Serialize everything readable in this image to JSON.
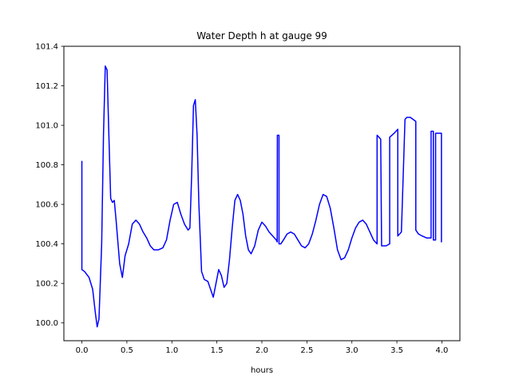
{
  "chart_data": {
    "type": "line",
    "title": "Water Depth h at gauge 99",
    "xlabel": "hours",
    "ylabel": "",
    "xlim": [
      -0.2,
      4.2
    ],
    "ylim": [
      99.91,
      101.4
    ],
    "xticks": [
      0.0,
      0.5,
      1.0,
      1.5,
      2.0,
      2.5,
      3.0,
      3.5,
      4.0
    ],
    "xtick_labels": [
      "0.0",
      "0.5",
      "1.0",
      "1.5",
      "2.0",
      "2.5",
      "3.0",
      "3.5",
      "4.0"
    ],
    "yticks": [
      100.0,
      100.2,
      100.4,
      100.6,
      100.8,
      101.0,
      101.2,
      101.4
    ],
    "ytick_labels": [
      "100.0",
      "100.2",
      "100.4",
      "100.6",
      "100.8",
      "101.0",
      "101.2",
      "101.4"
    ],
    "grid": false,
    "legend": "none",
    "series": [
      {
        "color": "#0000ff",
        "x": [
          0.0,
          0.0,
          0.03,
          0.08,
          0.12,
          0.15,
          0.17,
          0.19,
          0.22,
          0.24,
          0.26,
          0.28,
          0.3,
          0.32,
          0.34,
          0.36,
          0.38,
          0.42,
          0.45,
          0.48,
          0.52,
          0.56,
          0.6,
          0.64,
          0.68,
          0.72,
          0.76,
          0.8,
          0.85,
          0.9,
          0.94,
          0.98,
          1.02,
          1.06,
          1.1,
          1.14,
          1.18,
          1.2,
          1.22,
          1.24,
          1.26,
          1.28,
          1.3,
          1.33,
          1.36,
          1.4,
          1.43,
          1.46,
          1.49,
          1.52,
          1.55,
          1.58,
          1.61,
          1.64,
          1.67,
          1.7,
          1.73,
          1.76,
          1.79,
          1.82,
          1.85,
          1.88,
          1.92,
          1.96,
          2.0,
          2.04,
          2.08,
          2.12,
          2.16,
          2.17,
          2.172,
          2.19,
          2.19,
          2.21,
          2.24,
          2.28,
          2.32,
          2.36,
          2.4,
          2.44,
          2.48,
          2.52,
          2.56,
          2.6,
          2.64,
          2.68,
          2.72,
          2.76,
          2.8,
          2.84,
          2.88,
          2.92,
          2.96,
          3.0,
          3.04,
          3.08,
          3.12,
          3.16,
          3.2,
          3.24,
          3.28,
          3.28,
          3.32,
          3.33,
          3.38,
          3.42,
          3.42,
          3.47,
          3.51,
          3.51,
          3.55,
          3.59,
          3.61,
          3.65,
          3.68,
          3.71,
          3.71,
          3.74,
          3.78,
          3.83,
          3.88,
          3.88,
          3.905,
          3.905,
          3.93,
          3.93,
          3.995,
          3.995,
          4.0
        ],
        "y": [
          100.82,
          100.27,
          100.26,
          100.23,
          100.17,
          100.05,
          99.98,
          100.02,
          100.4,
          100.95,
          101.3,
          101.28,
          100.95,
          100.63,
          100.61,
          100.62,
          100.52,
          100.3,
          100.23,
          100.34,
          100.4,
          100.5,
          100.52,
          100.5,
          100.46,
          100.43,
          100.39,
          100.37,
          100.37,
          100.38,
          100.42,
          100.52,
          100.6,
          100.61,
          100.55,
          100.5,
          100.47,
          100.48,
          100.75,
          101.1,
          101.13,
          100.95,
          100.6,
          100.26,
          100.22,
          100.21,
          100.17,
          100.13,
          100.2,
          100.27,
          100.24,
          100.18,
          100.2,
          100.32,
          100.48,
          100.62,
          100.65,
          100.62,
          100.55,
          100.44,
          100.37,
          100.35,
          100.39,
          100.47,
          100.51,
          100.49,
          100.46,
          100.44,
          100.42,
          100.41,
          100.95,
          100.95,
          100.4,
          100.4,
          100.42,
          100.45,
          100.46,
          100.45,
          100.42,
          100.39,
          100.38,
          100.4,
          100.45,
          100.52,
          100.6,
          100.65,
          100.64,
          100.58,
          100.48,
          100.37,
          100.32,
          100.33,
          100.37,
          100.43,
          100.48,
          100.51,
          100.52,
          100.5,
          100.46,
          100.42,
          100.4,
          100.95,
          100.93,
          100.39,
          100.39,
          100.4,
          100.94,
          100.96,
          100.98,
          100.44,
          100.46,
          101.03,
          101.04,
          101.04,
          101.03,
          101.02,
          100.47,
          100.45,
          100.44,
          100.43,
          100.43,
          100.97,
          100.97,
          100.42,
          100.42,
          100.96,
          100.96,
          100.41,
          100.41
        ]
      }
    ]
  }
}
